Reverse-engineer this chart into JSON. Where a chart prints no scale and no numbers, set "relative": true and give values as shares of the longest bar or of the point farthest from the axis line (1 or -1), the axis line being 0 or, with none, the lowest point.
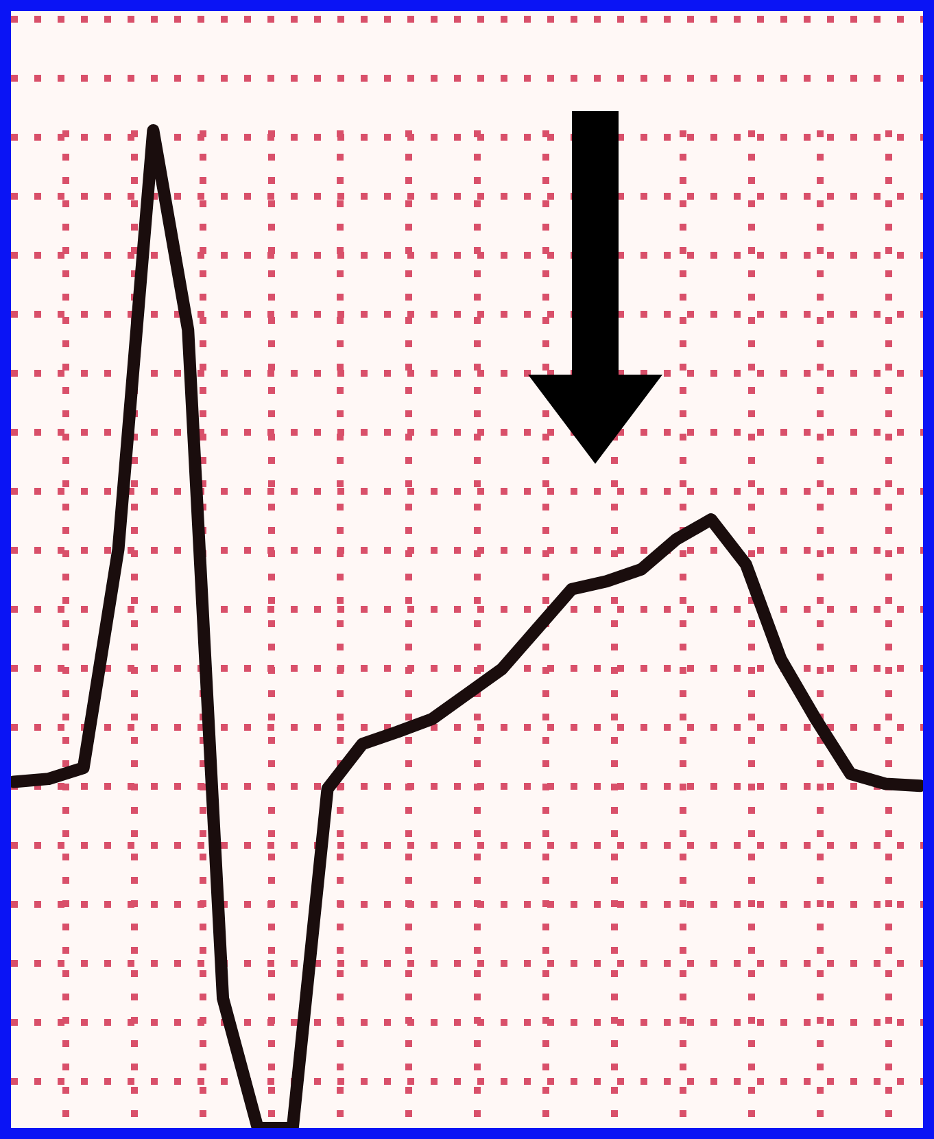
{
  "chart_data": {
    "type": "line",
    "relative": true,
    "grid": true,
    "marker": "none",
    "line_style": "solid",
    "categories": [
      null,
      null,
      null,
      null,
      null,
      null,
      null,
      null,
      null,
      null,
      null,
      null,
      null,
      null,
      null,
      null,
      null,
      null,
      null,
      null,
      null,
      null,
      null,
      null,
      null,
      null,
      null
    ],
    "series": [
      {
        "color": "#1a0d0d",
        "values": [
          0.347,
          0.35,
          0.361,
          0.58,
          1,
          0.8,
          0.13,
          0,
          0,
          0.34,
          0.385,
          0.397,
          0.41,
          0.435,
          0.46,
          0.5,
          0.54,
          0.548,
          0.56,
          0.59,
          0.61,
          0.565,
          0.47,
          0.41,
          0.355,
          0.345,
          0.343
        ]
      }
    ]
  }
}
